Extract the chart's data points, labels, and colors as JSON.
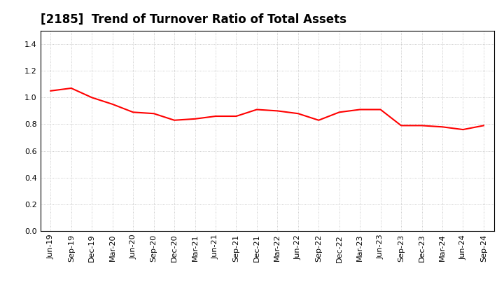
{
  "title": "[2185]  Trend of Turnover Ratio of Total Assets",
  "line_color": "#FF0000",
  "line_width": 1.5,
  "background_color": "#FFFFFF",
  "grid_color": "#BBBBBB",
  "ylim": [
    0.0,
    1.5
  ],
  "yticks": [
    0.0,
    0.2,
    0.4,
    0.6,
    0.8,
    1.0,
    1.2,
    1.4
  ],
  "x_labels": [
    "Jun-19",
    "Sep-19",
    "Dec-19",
    "Mar-20",
    "Jun-20",
    "Sep-20",
    "Dec-20",
    "Mar-21",
    "Jun-21",
    "Sep-21",
    "Dec-21",
    "Mar-22",
    "Jun-22",
    "Sep-22",
    "Dec-22",
    "Mar-23",
    "Jun-23",
    "Sep-23",
    "Dec-23",
    "Mar-24",
    "Jun-24",
    "Sep-24"
  ],
  "values": [
    1.05,
    1.07,
    1.0,
    0.95,
    0.89,
    0.88,
    0.83,
    0.84,
    0.86,
    0.86,
    0.91,
    0.9,
    0.88,
    0.83,
    0.89,
    0.91,
    0.91,
    0.79,
    0.79,
    0.78,
    0.76,
    0.79
  ],
  "title_fontsize": 12,
  "tick_fontsize": 8,
  "ytick_fontsize": 8
}
